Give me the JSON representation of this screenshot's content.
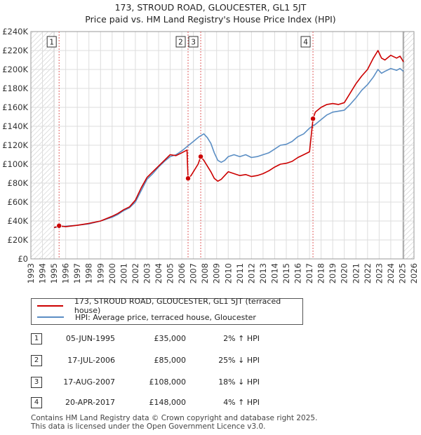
{
  "title": "173, STROUD ROAD, GLOUCESTER, GL1 5JT",
  "subtitle": "Price paid vs. HM Land Registry's House Price Index (HPI)",
  "colors": {
    "property": "#cc0000",
    "hpi": "#5b8ec4",
    "future_hatch": "#cccccc",
    "marker_line": "#e06060",
    "grid": "#dddddd"
  },
  "chart_data": {
    "type": "line",
    "title": "173, STROUD ROAD, GLOUCESTER, GL1 5JT",
    "subtitle": "Price paid vs. HM Land Registry's House Price Index (HPI)",
    "xlabel": "",
    "ylabel": "",
    "xlim": [
      1993,
      2026
    ],
    "ylim": [
      0,
      240000
    ],
    "y_ticks": [
      0,
      20000,
      40000,
      60000,
      80000,
      100000,
      120000,
      140000,
      160000,
      180000,
      200000,
      220000,
      240000
    ],
    "y_tick_labels": [
      "£0",
      "£20K",
      "£40K",
      "£60K",
      "£80K",
      "£100K",
      "£120K",
      "£140K",
      "£160K",
      "£180K",
      "£200K",
      "£220K",
      "£240K"
    ],
    "x_ticks": [
      1993,
      1994,
      1995,
      1996,
      1997,
      1998,
      1999,
      2000,
      2001,
      2002,
      2003,
      2004,
      2005,
      2006,
      2007,
      2008,
      2009,
      2010,
      2011,
      2012,
      2013,
      2014,
      2015,
      2016,
      2017,
      2018,
      2019,
      2020,
      2021,
      2022,
      2023,
      2024,
      2025,
      2026
    ],
    "grid": true,
    "hatched_ranges": [
      [
        1993,
        1995.0
      ],
      [
        2025.1,
        2026
      ]
    ],
    "series": [
      {
        "name": "173, STROUD ROAD, GLOUCESTER, GL1 5JT (terraced house)",
        "x": [
          1995.0,
          1995.43,
          1996,
          1997,
          1998,
          1999,
          2000,
          2000.5,
          2001,
          2001.5,
          2002,
          2002.5,
          2003,
          2003.5,
          2004,
          2004.5,
          2005,
          2005.5,
          2006,
          2006.45,
          2006.54,
          2006.8,
          2007,
          2007.4,
          2007.63,
          2007.9,
          2008.2,
          2008.5,
          2008.8,
          2009.1,
          2009.4,
          2009.7,
          2010,
          2010.5,
          2011,
          2011.5,
          2012,
          2012.5,
          2013,
          2013.5,
          2014,
          2014.5,
          2015,
          2015.5,
          2016,
          2016.5,
          2017.0,
          2017.3,
          2017.5,
          2018,
          2018.5,
          2019,
          2019.5,
          2020,
          2020.5,
          2021,
          2021.5,
          2022,
          2022.5,
          2022.9,
          2023.2,
          2023.5,
          2024,
          2024.5,
          2024.8,
          2025.1
        ],
        "values": [
          33000,
          35000,
          34000,
          35500,
          37500,
          40000,
          45000,
          48000,
          52000,
          55000,
          62000,
          75000,
          86000,
          92000,
          98000,
          104000,
          110000,
          109000,
          112000,
          115000,
          85000,
          88000,
          92000,
          100000,
          108000,
          104000,
          98000,
          92000,
          85000,
          82000,
          84000,
          88000,
          92000,
          90000,
          88000,
          89000,
          87000,
          88000,
          90000,
          93000,
          97000,
          100000,
          101000,
          103000,
          107000,
          110000,
          113000,
          148000,
          155000,
          160000,
          163000,
          164000,
          163000,
          165000,
          175000,
          185000,
          193000,
          200000,
          212000,
          220000,
          212000,
          210000,
          215000,
          212000,
          214000,
          208000
        ]
      },
      {
        "name": "HPI: Average price, terraced house, Gloucester",
        "x": [
          1995.0,
          1995.5,
          1996,
          1997,
          1998,
          1999,
          2000,
          2000.5,
          2001,
          2001.5,
          2002,
          2002.5,
          2003,
          2003.5,
          2004,
          2004.5,
          2005,
          2005.5,
          2006,
          2006.5,
          2007,
          2007.5,
          2007.9,
          2008.2,
          2008.5,
          2008.8,
          2009.1,
          2009.4,
          2009.7,
          2010,
          2010.5,
          2011,
          2011.5,
          2012,
          2012.5,
          2013,
          2013.5,
          2014,
          2014.5,
          2015,
          2015.5,
          2016,
          2016.5,
          2017,
          2017.5,
          2018,
          2018.5,
          2019,
          2019.5,
          2020,
          2020.5,
          2021,
          2021.5,
          2022,
          2022.5,
          2022.9,
          2023.2,
          2023.5,
          2024,
          2024.5,
          2024.8,
          2025.1
        ],
        "values": [
          33000,
          34000,
          34500,
          35500,
          37000,
          40000,
          44000,
          47000,
          51000,
          54000,
          60000,
          72000,
          84000,
          90000,
          97000,
          103000,
          108000,
          110000,
          114000,
          119000,
          124000,
          129000,
          132000,
          128000,
          122000,
          112000,
          104000,
          102000,
          104000,
          108000,
          110000,
          108000,
          110000,
          107000,
          108000,
          110000,
          112000,
          116000,
          120000,
          121000,
          124000,
          129000,
          132000,
          138000,
          142000,
          147000,
          152000,
          155000,
          156000,
          157000,
          163000,
          170000,
          178000,
          184000,
          192000,
          200000,
          196000,
          198000,
          201000,
          199000,
          201000,
          198000
        ]
      }
    ],
    "transactions": [
      {
        "num": "1",
        "year": 1995.43,
        "price": 35000
      },
      {
        "num": "2",
        "year": 2006.54,
        "price": 85000
      },
      {
        "num": "3",
        "year": 2007.63,
        "price": 108000
      },
      {
        "num": "4",
        "year": 2017.3,
        "price": 148000
      }
    ]
  },
  "legend": {
    "property_label": "173, STROUD ROAD, GLOUCESTER, GL1 5JT (terraced house)",
    "hpi_label": "HPI: Average price, terraced house, Gloucester"
  },
  "table": [
    {
      "num": "1",
      "date": "05-JUN-1995",
      "price": "£35,000",
      "hpi": "2% ↑ HPI"
    },
    {
      "num": "2",
      "date": "17-JUL-2006",
      "price": "£85,000",
      "hpi": "25% ↓ HPI"
    },
    {
      "num": "3",
      "date": "17-AUG-2007",
      "price": "£108,000",
      "hpi": "18% ↓ HPI"
    },
    {
      "num": "4",
      "date": "20-APR-2017",
      "price": "£148,000",
      "hpi": "4% ↑ HPI"
    }
  ],
  "footer": {
    "line1": "Contains HM Land Registry data © Crown copyright and database right 2025.",
    "line2": "This data is licensed under the Open Government Licence v3.0."
  }
}
